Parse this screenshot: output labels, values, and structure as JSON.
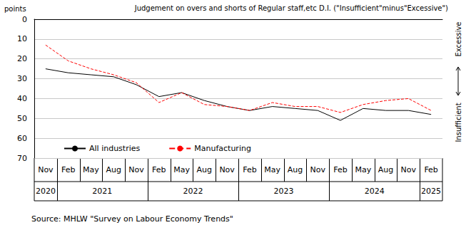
{
  "chart_data": {
    "type": "line",
    "title": "Judgement on overs and shorts of Regular staff,etc D.I. (\"Insufficient\"minus\"Excessive\")",
    "y_label": "points",
    "annotations": [
      "Excessive",
      "Insufficient"
    ],
    "source": "Source: MHLW \"Survey on Labour Economy Trends\"",
    "categories": [
      "Nov",
      "Feb",
      "May",
      "Aug",
      "Nov",
      "Feb",
      "May",
      "Aug",
      "Nov",
      "Feb",
      "May",
      "Aug",
      "Nov",
      "Feb",
      "May",
      "Aug",
      "Nov",
      "Feb"
    ],
    "years": [
      "2020",
      "2021",
      "2021",
      "2021",
      "2021",
      "2022",
      "2022",
      "2022",
      "2022",
      "2023",
      "2023",
      "2023",
      "2023",
      "2024",
      "2024",
      "2024",
      "2024",
      "2025"
    ],
    "series": [
      {
        "name": "All industries",
        "color": "#000000",
        "line_style": "solid",
        "marker": "none",
        "values": [
          25,
          27,
          28,
          29,
          33,
          39,
          37,
          41,
          44,
          46,
          44,
          45,
          46,
          51,
          45,
          46,
          46,
          48
        ]
      },
      {
        "name": "Manufacturing",
        "color": "#ff0000",
        "line_style": "dashed",
        "marker": "none",
        "values": [
          13,
          21,
          25,
          28,
          32,
          42,
          37,
          43,
          44,
          46,
          42,
          44,
          44,
          47,
          43,
          41,
          40,
          46
        ]
      }
    ],
    "ylim": [
      0,
      70
    ],
    "yticks": [
      0,
      10,
      20,
      30,
      40,
      50,
      60,
      70
    ],
    "y_inverted": true,
    "grid": true,
    "legend": "lower left"
  }
}
